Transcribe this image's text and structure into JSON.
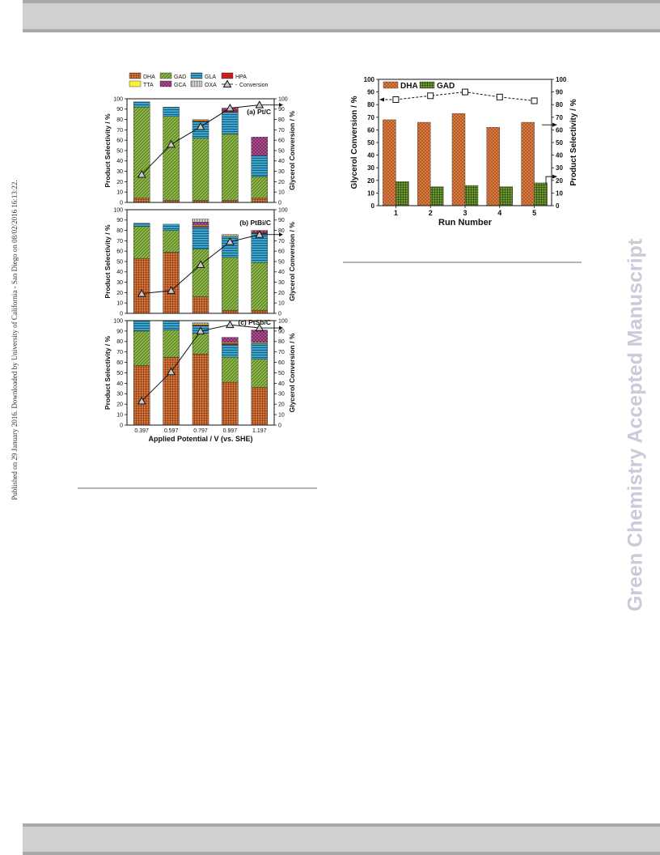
{
  "page": {
    "side_text": "Published on 29 January 2016. Downloaded by University of California - San Diego on 08/02/2016 16:13:22.",
    "watermark": "Green Chemistry Accepted Manuscript"
  },
  "colors": {
    "DHA": "#d8753a",
    "GAD": "#8db846",
    "GLA": "#3aa6d0",
    "HPA": "#d42020",
    "TTA": "#f6f23a",
    "GCA": "#b64f96",
    "OXA": "#8a8a8a",
    "run_DHA": "#d97a40",
    "run_GAD": "#5c8a2e"
  },
  "chart_data": [
    {
      "type": "bar",
      "stacked": true,
      "panel_label": "(a) Pt/C",
      "categories": [
        "0.397",
        "0.597",
        "0.797",
        "0.997",
        "1.197"
      ],
      "series": [
        {
          "name": "DHA",
          "values": [
            4,
            2,
            2,
            2,
            4
          ]
        },
        {
          "name": "GAD",
          "values": [
            88,
            81,
            60,
            64,
            21
          ]
        },
        {
          "name": "GLA",
          "values": [
            5,
            9,
            16,
            21,
            20
          ]
        },
        {
          "name": "HPA",
          "values": [
            0,
            0,
            1,
            2,
            0
          ]
        },
        {
          "name": "TTA",
          "values": [
            0,
            0,
            1,
            0,
            0
          ]
        },
        {
          "name": "GCA",
          "values": [
            0,
            0,
            0,
            2,
            18
          ]
        },
        {
          "name": "OXA",
          "values": [
            0,
            0,
            0,
            0,
            0
          ]
        }
      ],
      "conversion": {
        "name": "Conversion",
        "values": [
          27,
          56,
          73,
          91,
          94
        ]
      },
      "ylabel": "Product Selectivity / %",
      "y2label": "Glycerol Conversion / %",
      "ylim": [
        0,
        100
      ],
      "yticks": [
        0,
        10,
        20,
        30,
        40,
        50,
        60,
        70,
        80,
        90,
        100
      ]
    },
    {
      "type": "bar",
      "stacked": true,
      "panel_label": "(b) PtBi/C",
      "categories": [
        "0.397",
        "0.597",
        "0.797",
        "0.997",
        "1.197"
      ],
      "series": [
        {
          "name": "DHA",
          "values": [
            53,
            59,
            16,
            3,
            3
          ]
        },
        {
          "name": "GAD",
          "values": [
            31,
            21,
            46,
            51,
            46
          ]
        },
        {
          "name": "GLA",
          "values": [
            3,
            6,
            21,
            20,
            28
          ]
        },
        {
          "name": "HPA",
          "values": [
            0,
            0,
            1,
            0,
            1
          ]
        },
        {
          "name": "TTA",
          "values": [
            0,
            0,
            1,
            1,
            0
          ]
        },
        {
          "name": "GCA",
          "values": [
            0,
            0,
            3,
            0,
            2
          ]
        },
        {
          "name": "OXA",
          "values": [
            0,
            0,
            3,
            1,
            0
          ]
        }
      ],
      "conversion": {
        "name": "Conversion",
        "values": [
          19,
          22,
          47,
          69,
          76
        ]
      },
      "ylabel": "Product Selectivity / %",
      "y2label": "Glycerol Conversion / %",
      "ylim": [
        0,
        100
      ],
      "yticks": [
        0,
        10,
        20,
        30,
        40,
        50,
        60,
        70,
        80,
        90,
        100
      ]
    },
    {
      "type": "bar",
      "stacked": true,
      "panel_label": "(c) PtSb/C",
      "categories": [
        "0.397",
        "0.597",
        "0.797",
        "0.997",
        "1.197"
      ],
      "series": [
        {
          "name": "DHA",
          "values": [
            57,
            65,
            68,
            41,
            36
          ]
        },
        {
          "name": "GAD",
          "values": [
            33,
            26,
            20,
            24,
            27
          ]
        },
        {
          "name": "GLA",
          "values": [
            10,
            9,
            7,
            12,
            15
          ]
        },
        {
          "name": "HPA",
          "values": [
            0,
            0,
            1,
            1,
            0
          ]
        },
        {
          "name": "TTA",
          "values": [
            0,
            0,
            1,
            1,
            1
          ]
        },
        {
          "name": "GCA",
          "values": [
            0,
            0,
            0,
            5,
            12
          ]
        },
        {
          "name": "OXA",
          "values": [
            0,
            0,
            1,
            0,
            0
          ]
        }
      ],
      "conversion": {
        "name": "Conversion",
        "values": [
          23,
          51,
          90,
          96,
          93
        ]
      },
      "xlabel": "Applied Potential / V (vs. SHE)",
      "ylabel": "Product Selectivity / %",
      "y2label": "Glycerol Conversion / %",
      "ylim": [
        0,
        100
      ],
      "yticks": [
        0,
        10,
        20,
        30,
        40,
        50,
        60,
        70,
        80,
        90,
        100
      ]
    },
    {
      "type": "bar",
      "categories": [
        "1",
        "2",
        "3",
        "4",
        "5"
      ],
      "series": [
        {
          "name": "DHA",
          "values": [
            68,
            66,
            73,
            62,
            66
          ]
        },
        {
          "name": "GAD",
          "values": [
            19,
            15,
            16,
            15,
            18
          ]
        }
      ],
      "conversion": {
        "values": [
          84,
          87,
          90,
          86,
          83
        ]
      },
      "xlabel": "Run Number",
      "ylabel": "Glycerol Conversion / %",
      "y2label": "Product Selectivity / %",
      "ylim": [
        0,
        100
      ],
      "yticks": [
        0,
        10,
        20,
        30,
        40,
        50,
        60,
        70,
        80,
        90,
        100
      ]
    }
  ],
  "legend": {
    "row1": [
      "DHA",
      "GAD",
      "GLA",
      "HPA"
    ],
    "row2": [
      "TTA",
      "GCA",
      "OXA",
      "Conversion"
    ],
    "run_legend": [
      "DHA",
      "GAD"
    ]
  }
}
